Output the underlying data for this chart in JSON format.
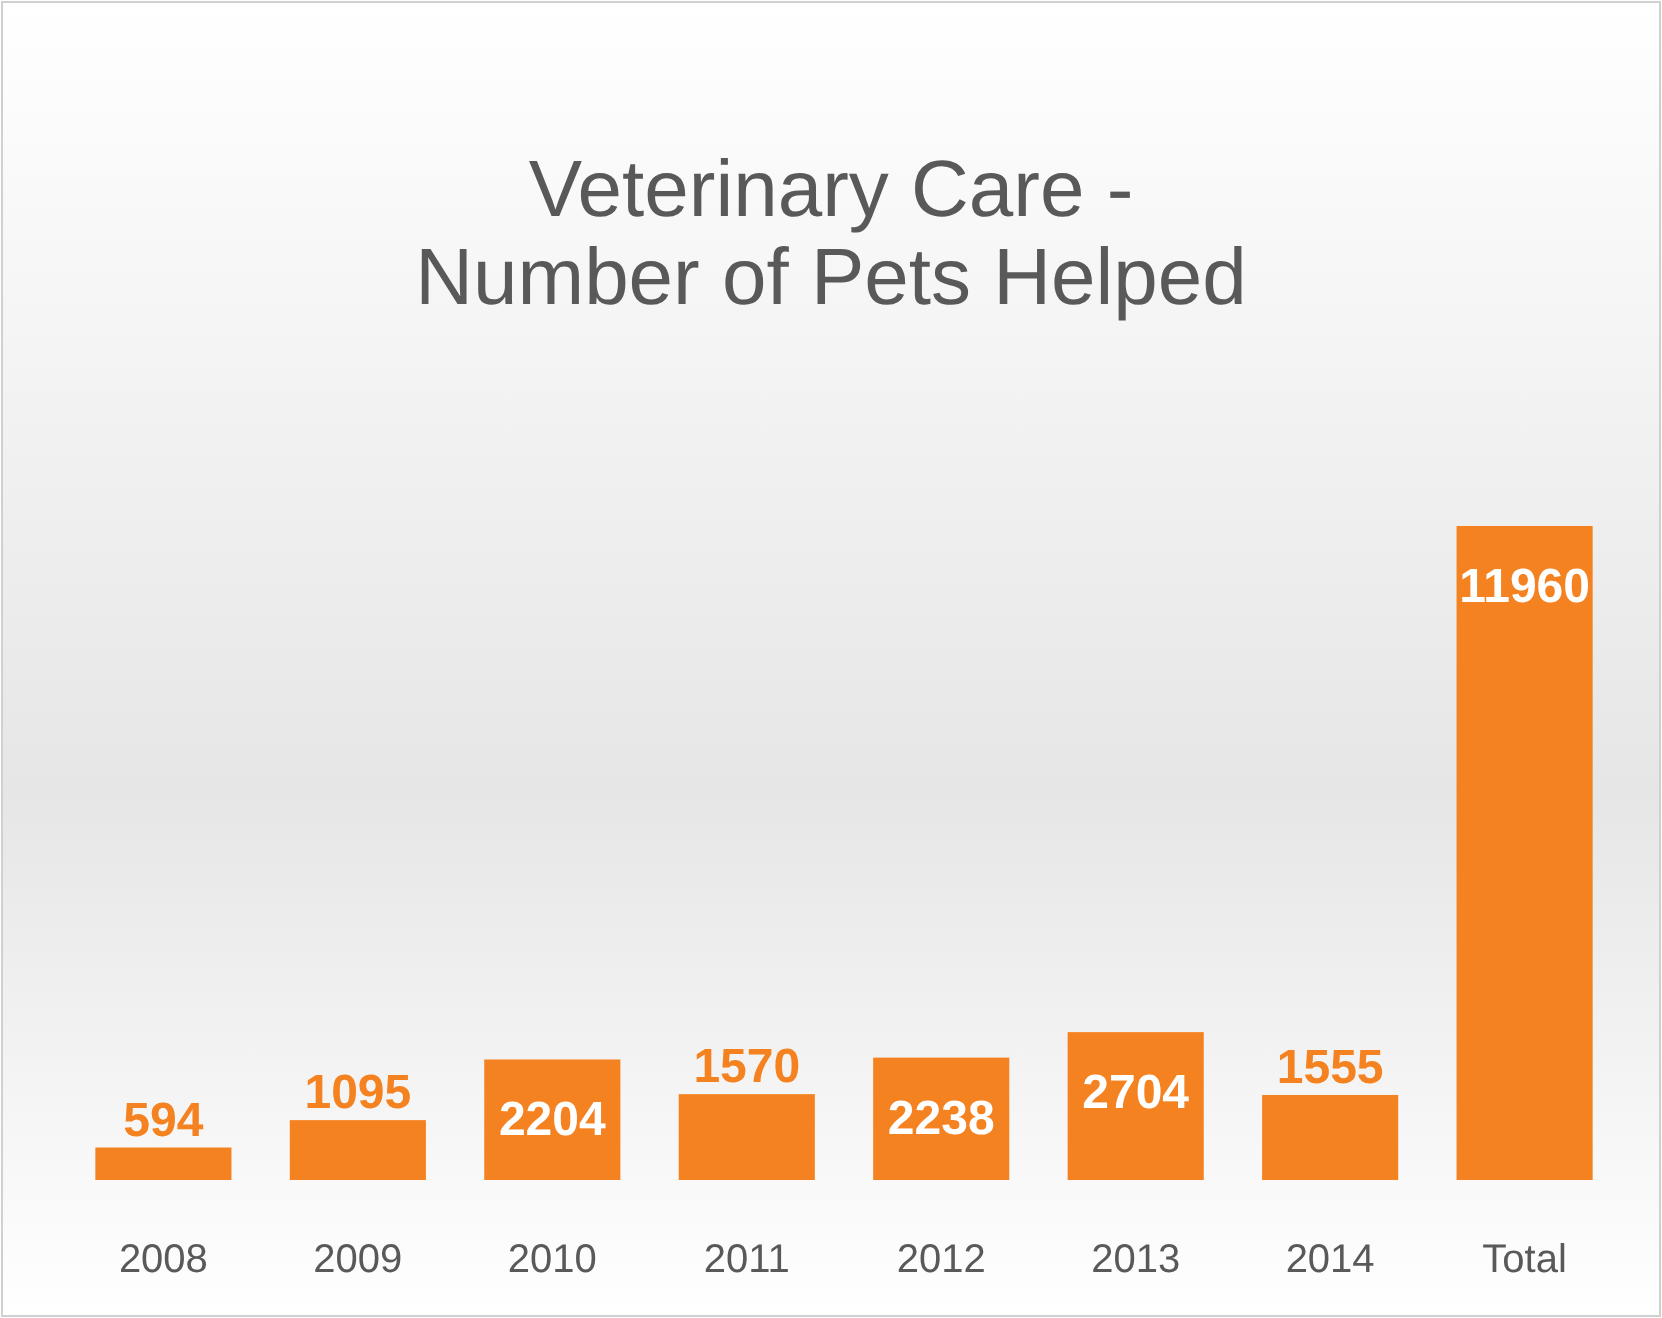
{
  "chart_data": {
    "type": "bar",
    "title": "Veterinary Care -\nNumber of Pets Helped",
    "categories": [
      "2008",
      "2009",
      "2010",
      "2011",
      "2012",
      "2013",
      "2014",
      "Total"
    ],
    "values": [
      594,
      1095,
      2204,
      1570,
      2238,
      2704,
      1555,
      11960
    ],
    "color": "#f58220",
    "data_labels": true
  }
}
